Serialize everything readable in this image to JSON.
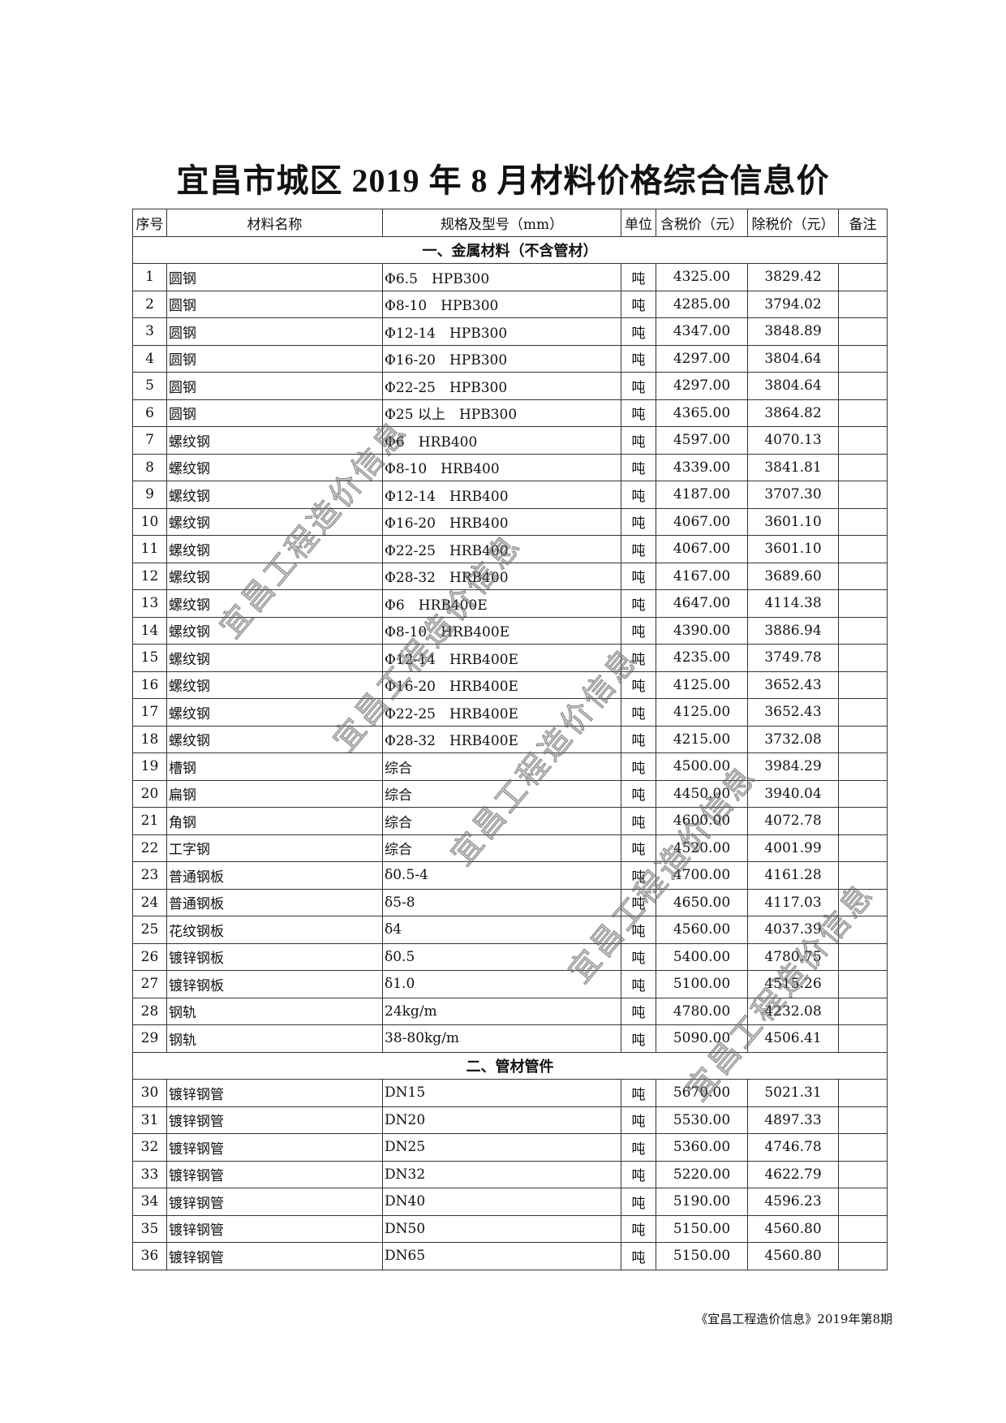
{
  "title": "宜昌市城区 2019 年 8 月材料价格综合信息价",
  "columns": [
    "序号",
    "材料名称",
    "规格及型号（mm）",
    "单位",
    "含税价（元）",
    "除税价（元）",
    "备注"
  ],
  "sections": [
    {
      "label": "一、金属材料（不含管材）",
      "rows": [
        [
          "1",
          "圆钢",
          "Φ6.5　HPB300",
          "吨",
          "4325.00",
          "3829.42",
          ""
        ],
        [
          "2",
          "圆钢",
          "Φ8-10　HPB300",
          "吨",
          "4285.00",
          "3794.02",
          ""
        ],
        [
          "3",
          "圆钢",
          "Φ12-14　HPB300",
          "吨",
          "4347.00",
          "3848.89",
          ""
        ],
        [
          "4",
          "圆钢",
          "Φ16-20　HPB300",
          "吨",
          "4297.00",
          "3804.64",
          ""
        ],
        [
          "5",
          "圆钢",
          "Φ22-25　HPB300",
          "吨",
          "4297.00",
          "3804.64",
          ""
        ],
        [
          "6",
          "圆钢",
          "Φ25 以上　HPB300",
          "吨",
          "4365.00",
          "3864.82",
          ""
        ],
        [
          "7",
          "螺纹钢",
          "Φ6　HRB400",
          "吨",
          "4597.00",
          "4070.13",
          ""
        ],
        [
          "8",
          "螺纹钢",
          "Φ8-10　HRB400",
          "吨",
          "4339.00",
          "3841.81",
          ""
        ],
        [
          "9",
          "螺纹钢",
          "Φ12-14　HRB400",
          "吨",
          "4187.00",
          "3707.30",
          ""
        ],
        [
          "10",
          "螺纹钢",
          "Φ16-20　HRB400",
          "吨",
          "4067.00",
          "3601.10",
          ""
        ],
        [
          "11",
          "螺纹钢",
          "Φ22-25　HRB400",
          "吨",
          "4067.00",
          "3601.10",
          ""
        ],
        [
          "12",
          "螺纹钢",
          "Φ28-32　HRB400",
          "吨",
          "4167.00",
          "3689.60",
          ""
        ],
        [
          "13",
          "螺纹钢",
          "Φ6　HRB400E",
          "吨",
          "4647.00",
          "4114.38",
          ""
        ],
        [
          "14",
          "螺纹钢",
          "Φ8-10　HRB400E",
          "吨",
          "4390.00",
          "3886.94",
          ""
        ],
        [
          "15",
          "螺纹钢",
          "Φ12-14　HRB400E",
          "吨",
          "4235.00",
          "3749.78",
          ""
        ],
        [
          "16",
          "螺纹钢",
          "Φ16-20　HRB400E",
          "吨",
          "4125.00",
          "3652.43",
          ""
        ],
        [
          "17",
          "螺纹钢",
          "Φ22-25　HRB400E",
          "吨",
          "4125.00",
          "3652.43",
          ""
        ],
        [
          "18",
          "螺纹钢",
          "Φ28-32　HRB400E",
          "吨",
          "4215.00",
          "3732.08",
          ""
        ],
        [
          "19",
          "槽钢",
          "综合",
          "吨",
          "4500.00",
          "3984.29",
          ""
        ],
        [
          "20",
          "扁钢",
          "综合",
          "吨",
          "4450.00",
          "3940.04",
          ""
        ],
        [
          "21",
          "角钢",
          "综合",
          "吨",
          "4600.00",
          "4072.78",
          ""
        ],
        [
          "22",
          "工字钢",
          "综合",
          "吨",
          "4520.00",
          "4001.99",
          ""
        ],
        [
          "23",
          "普通钢板",
          "δ0.5-4",
          "吨",
          "4700.00",
          "4161.28",
          ""
        ],
        [
          "24",
          "普通钢板",
          "δ5-8",
          "吨",
          "4650.00",
          "4117.03",
          ""
        ],
        [
          "25",
          "花纹钢板",
          "δ4",
          "吨",
          "4560.00",
          "4037.39",
          ""
        ],
        [
          "26",
          "镀锌钢板",
          "δ0.5",
          "吨",
          "5400.00",
          "4780.75",
          ""
        ],
        [
          "27",
          "镀锌钢板",
          "δ1.0",
          "吨",
          "5100.00",
          "4515.26",
          ""
        ],
        [
          "28",
          "钢轨",
          "24kg/m",
          "吨",
          "4780.00",
          "4232.08",
          ""
        ],
        [
          "29",
          "钢轨",
          "38-80kg/m",
          "吨",
          "5090.00",
          "4506.41",
          ""
        ]
      ]
    },
    {
      "label": "二、管材管件",
      "rows": [
        [
          "30",
          "镀锌钢管",
          "DN15",
          "吨",
          "5670.00",
          "5021.31",
          ""
        ],
        [
          "31",
          "镀锌钢管",
          "DN20",
          "吨",
          "5530.00",
          "4897.33",
          ""
        ],
        [
          "32",
          "镀锌钢管",
          "DN25",
          "吨",
          "5360.00",
          "4746.78",
          ""
        ],
        [
          "33",
          "镀锌钢管",
          "DN32",
          "吨",
          "5220.00",
          "4622.79",
          ""
        ],
        [
          "34",
          "镀锌钢管",
          "DN40",
          "吨",
          "5190.00",
          "4596.23",
          ""
        ],
        [
          "35",
          "镀锌钢管",
          "DN50",
          "吨",
          "5150.00",
          "4560.80",
          ""
        ],
        [
          "36",
          "镀锌钢管",
          "DN65",
          "吨",
          "5150.00",
          "4560.80",
          ""
        ]
      ]
    }
  ],
  "watermark": "宜昌工程造价信息",
  "footer": "《宜昌工程造价信息》2019年第8期"
}
